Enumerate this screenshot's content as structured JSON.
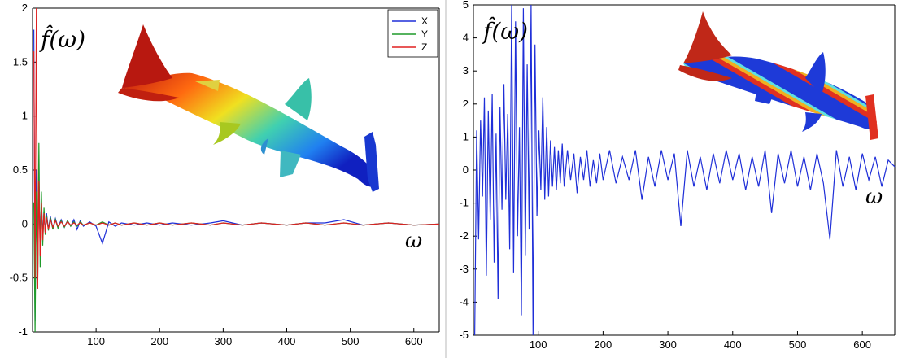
{
  "chart_data": [
    {
      "type": "line",
      "panel": "left",
      "ylabel": "f̂(ω)",
      "xlabel": "ω",
      "xlim": [
        0,
        640
      ],
      "ylim": [
        -1,
        2
      ],
      "xticks": [
        "100",
        "200",
        "300",
        "400",
        "500",
        "600"
      ],
      "yticks": [
        "-1",
        "-0.5",
        "0",
        "0.5",
        "1",
        "1.5",
        "2"
      ],
      "legend_position": "top-right",
      "series": [
        {
          "name": "X",
          "color": "#1f2fd8",
          "x": [
            2,
            4,
            6,
            8,
            10,
            12,
            14,
            16,
            18,
            20,
            22,
            25,
            28,
            32,
            36,
            40,
            45,
            50,
            55,
            60,
            65,
            70,
            75,
            80,
            90,
            100,
            110,
            120,
            130,
            140,
            160,
            180,
            200,
            220,
            250,
            280,
            300,
            330,
            360,
            400,
            430,
            460,
            490,
            520,
            560,
            600,
            640
          ],
          "y": [
            1.8,
            -0.9,
            0.5,
            -0.3,
            0.25,
            -0.15,
            0.2,
            -0.1,
            0.12,
            -0.08,
            0.1,
            -0.05,
            0.07,
            -0.04,
            0.05,
            -0.03,
            0.04,
            -0.03,
            0.03,
            -0.02,
            0.04,
            -0.05,
            0.03,
            -0.02,
            0.02,
            -0.02,
            -0.18,
            0.02,
            -0.02,
            0.01,
            -0.01,
            0.01,
            -0.01,
            0.01,
            -0.01,
            0.01,
            0.03,
            -0.01,
            0.01,
            -0.01,
            0.01,
            0.01,
            0.04,
            -0.01,
            0.01,
            -0.01,
            0
          ]
        },
        {
          "name": "Y",
          "color": "#1f9a2a",
          "x": [
            2,
            4,
            6,
            8,
            10,
            12,
            14,
            16,
            18,
            20,
            22,
            25,
            28,
            32,
            36,
            40,
            45,
            50,
            55,
            60,
            65,
            70,
            75,
            80,
            90,
            100,
            110,
            120,
            130,
            140,
            160,
            180,
            200,
            220,
            250,
            280,
            300,
            330,
            360,
            400,
            430,
            460,
            490,
            520,
            560,
            600,
            640
          ],
          "y": [
            0.2,
            -1.0,
            0.3,
            -0.6,
            0.75,
            -0.4,
            0.3,
            -0.2,
            0.15,
            -0.1,
            0.08,
            -0.06,
            0.06,
            -0.05,
            0.04,
            -0.04,
            0.03,
            -0.03,
            0.03,
            -0.02,
            0.02,
            -0.02,
            0.02,
            -0.01,
            0.01,
            -0.01,
            0.02,
            -0.01,
            0.01,
            -0.01,
            0.01,
            -0.01,
            0.01,
            -0.01,
            0.01,
            -0.01,
            0.01,
            -0.01,
            0.01,
            -0.01,
            0.01,
            -0.01,
            0.01,
            -0.01,
            0.01,
            -0.01,
            0
          ]
        },
        {
          "name": "Z",
          "color": "#e02020",
          "x": [
            2,
            4,
            6,
            8,
            10,
            12,
            14,
            16,
            18,
            20,
            22,
            25,
            28,
            32,
            36,
            40,
            45,
            50,
            55,
            60,
            65,
            70,
            75,
            80,
            90,
            100,
            110,
            120,
            130,
            140,
            160,
            180,
            200,
            220,
            250,
            280,
            300,
            330,
            360,
            400,
            430,
            460,
            490,
            520,
            560,
            600,
            640
          ],
          "y": [
            1.6,
            -0.5,
            2.0,
            -0.6,
            0.4,
            -0.3,
            0.2,
            -0.15,
            0.1,
            -0.08,
            0.06,
            -0.05,
            0.04,
            -0.03,
            0.03,
            -0.02,
            0.02,
            -0.02,
            0.02,
            -0.01,
            0.01,
            -0.01,
            0.01,
            -0.01,
            0.01,
            -0.01,
            0.01,
            -0.01,
            0.01,
            -0.01,
            0.01,
            -0.01,
            0.01,
            -0.01,
            0.01,
            -0.01,
            0.01,
            -0.01,
            0.01,
            -0.01,
            0.01,
            -0.01,
            0.01,
            -0.01,
            0.01,
            -0.01,
            0
          ]
        }
      ]
    },
    {
      "type": "line",
      "panel": "right",
      "ylabel": "f̂(ω)",
      "xlabel": "ω",
      "xlim": [
        0,
        650
      ],
      "ylim": [
        -5,
        5
      ],
      "xticks": [
        "100",
        "200",
        "300",
        "400",
        "500",
        "600"
      ],
      "yticks": [
        "-5",
        "-4",
        "-3",
        "-2",
        "-1",
        "0",
        "1",
        "2",
        "3",
        "4",
        "5"
      ],
      "series": [
        {
          "color": "#1f2fd8",
          "x": [
            2,
            5,
            8,
            11,
            14,
            17,
            20,
            23,
            26,
            29,
            32,
            35,
            38,
            41,
            44,
            47,
            50,
            53,
            56,
            59,
            62,
            65,
            68,
            71,
            74,
            77,
            80,
            83,
            86,
            89,
            92,
            95,
            98,
            101,
            104,
            107,
            110,
            113,
            116,
            119,
            122,
            125,
            128,
            131,
            134,
            137,
            140,
            145,
            150,
            155,
            160,
            165,
            170,
            175,
            180,
            185,
            190,
            195,
            200,
            210,
            220,
            230,
            240,
            250,
            260,
            270,
            280,
            290,
            300,
            310,
            320,
            330,
            340,
            350,
            360,
            370,
            380,
            390,
            400,
            410,
            420,
            430,
            440,
            450,
            460,
            470,
            480,
            490,
            500,
            510,
            520,
            530,
            540,
            550,
            560,
            570,
            580,
            590,
            600,
            610,
            620,
            630,
            640,
            650
          ],
          "y": [
            -5,
            1.2,
            -2.1,
            1.5,
            -0.8,
            2.2,
            -3.2,
            1.8,
            -1.5,
            2.3,
            -2.8,
            1.1,
            -3.9,
            1.9,
            -1.2,
            2.6,
            -0.9,
            1.7,
            -2.4,
            5,
            -3.1,
            4.5,
            -2.0,
            1.3,
            -4.4,
            4.9,
            -2.6,
            3.2,
            -1.8,
            5,
            -5,
            3.8,
            -1.4,
            1.2,
            -0.6,
            2.2,
            -0.9,
            1.3,
            -0.8,
            0.9,
            -0.5,
            0.7,
            -0.6,
            0.6,
            -0.4,
            0.8,
            -0.5,
            0.6,
            -0.3,
            0.5,
            -0.7,
            0.4,
            -0.3,
            0.6,
            -0.5,
            0.3,
            -0.4,
            0.5,
            -0.3,
            0.6,
            -0.4,
            0.4,
            -0.3,
            0.6,
            -0.9,
            0.4,
            -0.5,
            0.6,
            -0.3,
            0.5,
            -1.7,
            0.6,
            -0.5,
            0.4,
            -0.6,
            0.5,
            -0.4,
            0.6,
            -0.3,
            0.5,
            -0.6,
            0.4,
            -0.5,
            0.6,
            -1.3,
            0.5,
            -0.4,
            0.6,
            -0.5,
            0.4,
            -0.6,
            0.5,
            -0.4,
            -2.1,
            0.6,
            -0.5,
            0.4,
            -0.6,
            0.5,
            -0.3,
            0.4,
            -0.5,
            0.3,
            0.1
          ]
        }
      ]
    }
  ]
}
